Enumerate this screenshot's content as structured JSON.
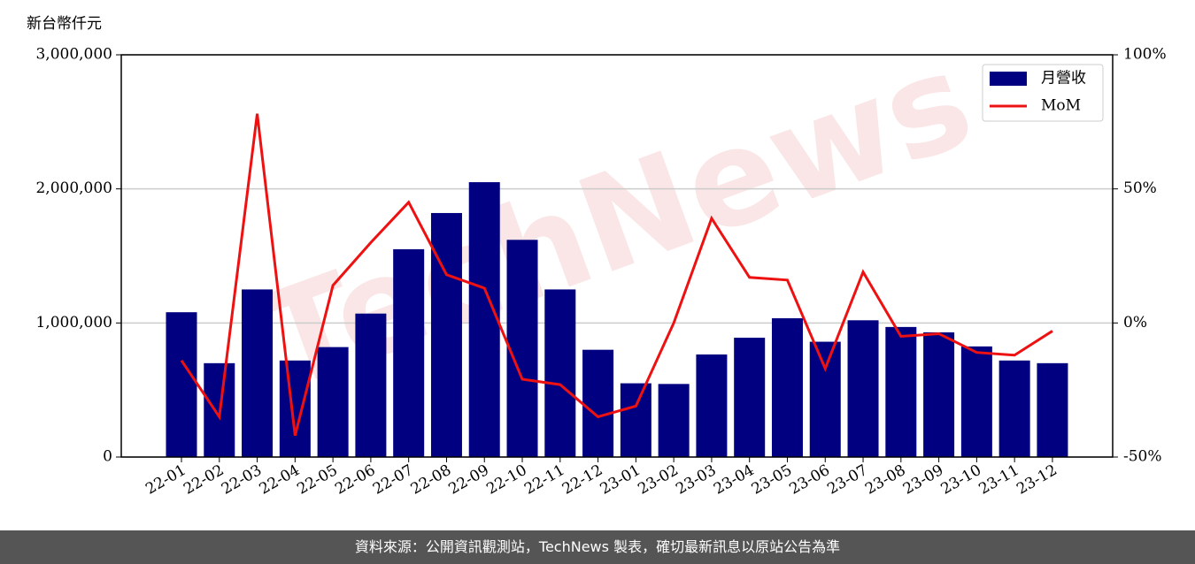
{
  "chart_data": {
    "type": "bar_line",
    "y_label": "新台幣仟元",
    "watermark": "TechNews",
    "categories": [
      "22-01",
      "22-02",
      "22-03",
      "22-04",
      "22-05",
      "22-06",
      "22-07",
      "22-08",
      "22-09",
      "22-10",
      "22-11",
      "22-12",
      "23-01",
      "23-02",
      "23-03",
      "23-04",
      "23-05",
      "23-06",
      "23-07",
      "23-08",
      "23-09",
      "23-10",
      "23-11",
      "23-12"
    ],
    "series": [
      {
        "name": "月營收",
        "color": "#000080",
        "kind": "bar",
        "values": [
          1080000,
          700000,
          1250000,
          720000,
          820000,
          1070000,
          1550000,
          1820000,
          2050000,
          1620000,
          1250000,
          800000,
          550000,
          545000,
          765000,
          890000,
          1035000,
          860000,
          1020000,
          970000,
          930000,
          825000,
          720000,
          700000
        ]
      },
      {
        "name": "MoM",
        "color": "#ee1111",
        "kind": "line",
        "axis": "y2",
        "values": [
          -14,
          -35,
          78,
          -42,
          14,
          30,
          45,
          18,
          13,
          -21,
          -23,
          -35,
          -31,
          0,
          39,
          17,
          16,
          -17,
          19,
          -5,
          -4,
          -11,
          -12,
          -3
        ]
      }
    ],
    "ylim": [
      0,
      3000000
    ],
    "yticks": [
      {
        "value": 0,
        "label": "0"
      },
      {
        "value": 1000000,
        "label": "1,000,000"
      },
      {
        "value": 2000000,
        "label": "2,000,000"
      },
      {
        "value": 3000000,
        "label": "3,000,000"
      }
    ],
    "y2lim": [
      -50,
      100
    ],
    "y2ticks": [
      {
        "value": -50,
        "label": "-50%"
      },
      {
        "value": 0,
        "label": "0%"
      },
      {
        "value": 50,
        "label": "50%"
      },
      {
        "value": 100,
        "label": "100%"
      }
    ],
    "grid": true,
    "legend": "upper right"
  },
  "footer": "資料來源：公開資訊觀測站，TechNews 製表，確切最新訊息以原站公告為準"
}
